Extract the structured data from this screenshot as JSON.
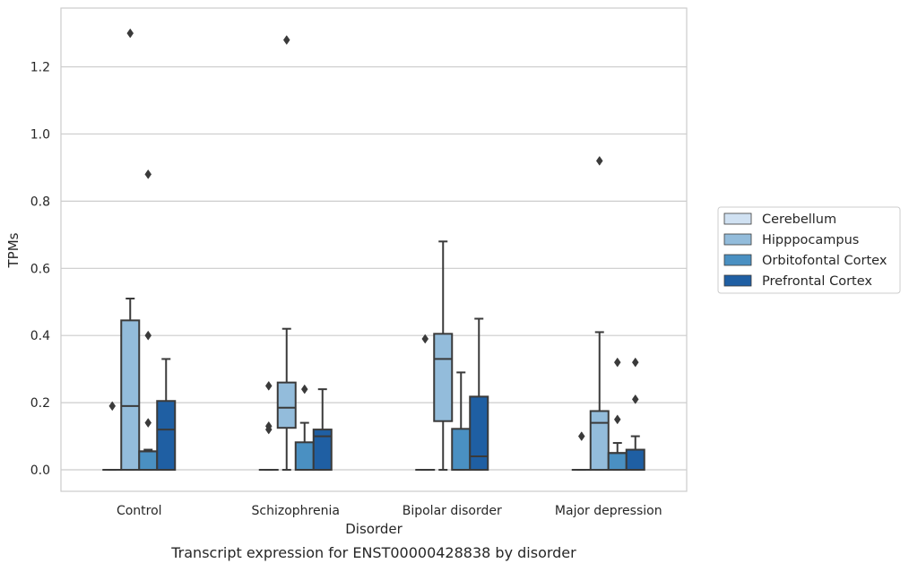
{
  "chart_data": {
    "type": "box",
    "xlabel": "Disorder",
    "ylabel": "TPMs",
    "caption": "Transcript expression for ENST00000428838 by disorder",
    "ylim": [
      -0.064,
      1.375
    ],
    "yticks": [
      0.0,
      0.2,
      0.4,
      0.6,
      0.8,
      1.0,
      1.2
    ],
    "ytick_labels": [
      "0.0",
      "0.2",
      "0.4",
      "0.6",
      "0.8",
      "1.0",
      "1.2"
    ],
    "grid": "horizontal",
    "legend_position": "right",
    "categories": [
      "Control",
      "Schizophrenia",
      "Bipolar disorder",
      "Major depression"
    ],
    "series": [
      {
        "name": "Cerebellum",
        "color": "#d0e1f2",
        "boxes": [
          {
            "q1": 0.0,
            "median": 0.0,
            "q3": 0.0,
            "whisker_low": 0.0,
            "whisker_high": 0.0,
            "outliers": [
              0.19
            ]
          },
          {
            "q1": 0.0,
            "median": 0.0,
            "q3": 0.0,
            "whisker_low": 0.0,
            "whisker_high": 0.0,
            "outliers": [
              0.25,
              0.13,
              0.12
            ]
          },
          {
            "q1": 0.0,
            "median": 0.0,
            "q3": 0.0,
            "whisker_low": 0.0,
            "whisker_high": 0.0,
            "outliers": [
              0.39
            ]
          },
          {
            "q1": 0.0,
            "median": 0.0,
            "q3": 0.0,
            "whisker_low": 0.0,
            "whisker_high": 0.0,
            "outliers": [
              0.1
            ]
          }
        ]
      },
      {
        "name": "Hipppocampus",
        "color": "#93bcdb",
        "boxes": [
          {
            "q1": 0.0,
            "median": 0.19,
            "q3": 0.445,
            "whisker_low": 0.0,
            "whisker_high": 0.51,
            "outliers": [
              1.3
            ]
          },
          {
            "q1": 0.125,
            "median": 0.185,
            "q3": 0.26,
            "whisker_low": 0.0,
            "whisker_high": 0.42,
            "outliers": [
              1.28
            ]
          },
          {
            "q1": 0.145,
            "median": 0.33,
            "q3": 0.405,
            "whisker_low": 0.0,
            "whisker_high": 0.68,
            "outliers": []
          },
          {
            "q1": 0.0,
            "median": 0.14,
            "q3": 0.175,
            "whisker_low": 0.0,
            "whisker_high": 0.41,
            "outliers": [
              0.92
            ]
          }
        ]
      },
      {
        "name": "Orbitofontal Cortex",
        "color": "#4a90c2",
        "boxes": [
          {
            "q1": 0.0,
            "median": 0.055,
            "q3": 0.055,
            "whisker_low": 0.0,
            "whisker_high": 0.06,
            "outliers": [
              0.14,
              0.4,
              0.88
            ]
          },
          {
            "q1": 0.0,
            "median": 0.0,
            "q3": 0.082,
            "whisker_low": 0.0,
            "whisker_high": 0.14,
            "outliers": [
              0.24
            ]
          },
          {
            "q1": 0.0,
            "median": 0.0,
            "q3": 0.122,
            "whisker_low": 0.0,
            "whisker_high": 0.29,
            "outliers": []
          },
          {
            "q1": 0.0,
            "median": 0.05,
            "q3": 0.05,
            "whisker_low": 0.0,
            "whisker_high": 0.08,
            "outliers": [
              0.15,
              0.32
            ]
          }
        ]
      },
      {
        "name": "Prefrontal Cortex",
        "color": "#1f5fa3",
        "boxes": [
          {
            "q1": 0.0,
            "median": 0.12,
            "q3": 0.205,
            "whisker_low": 0.0,
            "whisker_high": 0.33,
            "outliers": []
          },
          {
            "q1": 0.0,
            "median": 0.1,
            "q3": 0.12,
            "whisker_low": 0.0,
            "whisker_high": 0.24,
            "outliers": []
          },
          {
            "q1": 0.0,
            "median": 0.04,
            "q3": 0.218,
            "whisker_low": 0.0,
            "whisker_high": 0.45,
            "outliers": []
          },
          {
            "q1": 0.0,
            "median": 0.0,
            "q3": 0.06,
            "whisker_low": 0.0,
            "whisker_high": 0.1,
            "outliers": [
              0.21,
              0.32
            ]
          }
        ]
      }
    ]
  },
  "colors": {
    "edge": "#3a3a3a",
    "grid": "#cccccc",
    "frame": "#cccccc",
    "legend_border": "#cccccc"
  }
}
